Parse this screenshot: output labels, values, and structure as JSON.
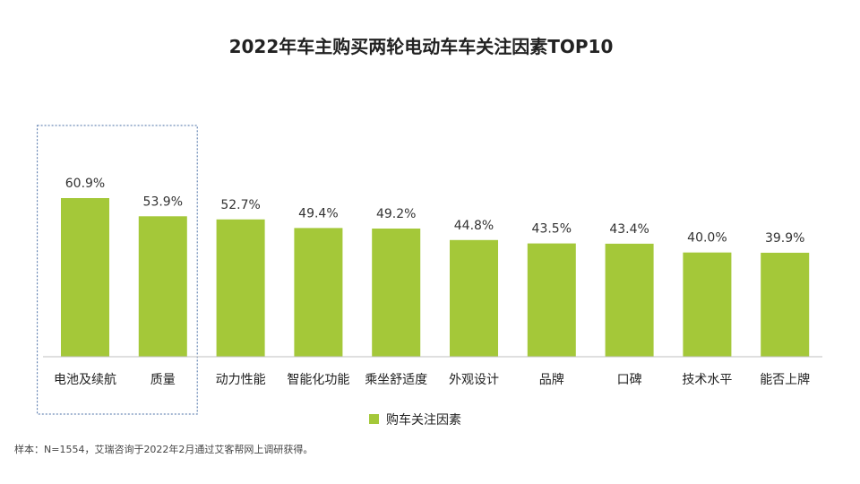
{
  "chart_data": {
    "type": "bar",
    "title": "2022年车主购买两轮电动车车关注因素TOP10",
    "categories": [
      "电池及续航",
      "质量",
      "动力性能",
      "智能化功能",
      "乘坐舒适度",
      "外观设计",
      "品牌",
      "口碑",
      "技术水平",
      "能否上牌"
    ],
    "value_labels": [
      "60.9%",
      "53.9%",
      "52.7%",
      "49.4%",
      "49.2%",
      "44.8%",
      "43.5%",
      "43.4%",
      "40.0%",
      "39.9%"
    ],
    "series": [
      {
        "name": "购车关注因素",
        "values": [
          60.9,
          53.9,
          52.7,
          49.4,
          49.2,
          44.8,
          43.5,
          43.4,
          40.0,
          39.9
        ]
      }
    ],
    "ylim": [
      0,
      70
    ],
    "highlight_categories": [
      "电池及续航",
      "质量"
    ],
    "grid": false,
    "legend_position": "bottom",
    "colors": {
      "bar": "#a4c839",
      "axis": "#bfbfbf",
      "highlight_box": "#4a6fa5"
    }
  },
  "source_note": "样本：N=1554，艾瑞咨询于2022年2月通过艾客帮网上调研获得。"
}
